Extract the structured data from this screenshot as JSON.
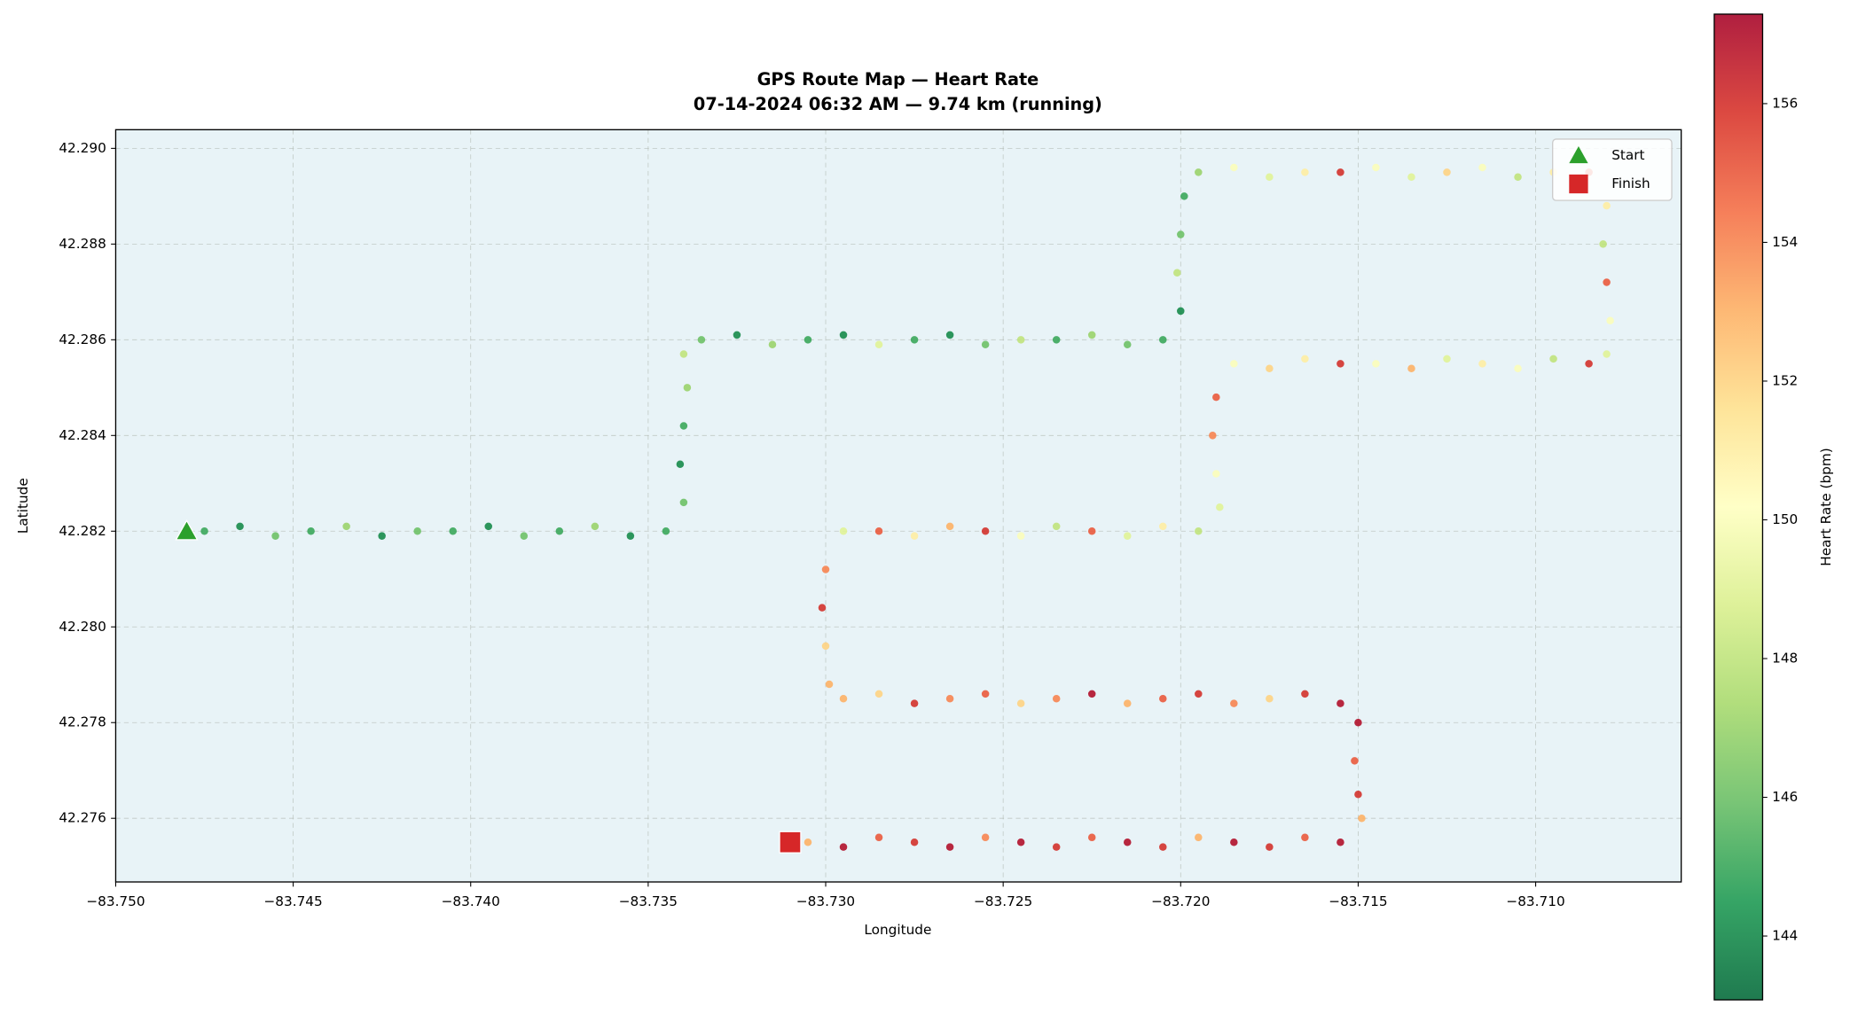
{
  "chart_data": {
    "type": "scatter",
    "title": "GPS Route Map — Heart Rate",
    "subtitle": "07-14-2024 06:32 AM — 9.74 km (running)",
    "x_label": "Longitude",
    "y_label": "Latitude",
    "colorbar_label": "Heart Rate (bpm)",
    "colormap": "RdYlGn_r",
    "xlim": [
      -83.75,
      -83.7059
    ],
    "ylim": [
      42.27467,
      42.29039
    ],
    "xticks": [
      {
        "value": -83.75,
        "label": "−83.750"
      },
      {
        "value": -83.745,
        "label": "−83.745"
      },
      {
        "value": -83.74,
        "label": "−83.740"
      },
      {
        "value": -83.735,
        "label": "−83.735"
      },
      {
        "value": -83.73,
        "label": "−83.730"
      },
      {
        "value": -83.725,
        "label": "−83.725"
      },
      {
        "value": -83.72,
        "label": "−83.720"
      },
      {
        "value": -83.715,
        "label": "−83.715"
      },
      {
        "value": -83.71,
        "label": "−83.710"
      }
    ],
    "yticks": [
      42.276,
      42.278,
      {
        "value": 42.28,
        "label": "42.280"
      },
      42.282,
      42.284,
      42.286,
      42.288,
      {
        "value": 42.29,
        "label": "42.290"
      }
    ],
    "clim": [
      143.08,
      157.29
    ],
    "cticks": [
      144,
      146,
      148,
      150,
      152,
      154,
      156
    ],
    "grid": true,
    "legend": "upper right",
    "markers": [
      {
        "name": "Start",
        "x": -83.748,
        "y": 42.282,
        "color": "#2ca02c",
        "shape": "triangle"
      },
      {
        "name": "Finish",
        "x": -83.731,
        "y": 42.2755,
        "color": "#d62728",
        "shape": "square"
      }
    ],
    "x": [
      -83.7475,
      -83.7465,
      -83.7455,
      -83.7445,
      -83.7435,
      -83.7425,
      -83.7415,
      -83.7405,
      -83.7395,
      -83.7385,
      -83.7375,
      -83.7365,
      -83.7355,
      -83.7345,
      -83.734,
      -83.7341,
      -83.734,
      -83.7339,
      -83.734,
      -83.7335,
      -83.7325,
      -83.7315,
      -83.7305,
      -83.7295,
      -83.7285,
      -83.7275,
      -83.7265,
      -83.7255,
      -83.7245,
      -83.7235,
      -83.7225,
      -83.7215,
      -83.7205,
      -83.72,
      -83.7201,
      -83.72,
      -83.7199,
      -83.7195,
      -83.7185,
      -83.7175,
      -83.7165,
      -83.7155,
      -83.7145,
      -83.7135,
      -83.7125,
      -83.7115,
      -83.7105,
      -83.7095,
      -83.7085,
      -83.708,
      -83.7081,
      -83.708,
      -83.7079,
      -83.708,
      -83.7085,
      -83.7095,
      -83.7105,
      -83.7115,
      -83.7125,
      -83.7135,
      -83.7145,
      -83.7155,
      -83.7165,
      -83.7175,
      -83.7185,
      -83.719,
      -83.7191,
      -83.719,
      -83.7189,
      -83.7195,
      -83.7205,
      -83.7215,
      -83.7225,
      -83.7235,
      -83.7245,
      -83.7255,
      -83.7265,
      -83.7275,
      -83.7285,
      -83.7295,
      -83.73,
      -83.7301,
      -83.73,
      -83.7299,
      -83.7295,
      -83.7285,
      -83.7275,
      -83.7265,
      -83.7255,
      -83.7245,
      -83.7235,
      -83.7225,
      -83.7215,
      -83.7205,
      -83.7195,
      -83.7185,
      -83.7175,
      -83.7165,
      -83.7155,
      -83.715,
      -83.7151,
      -83.715,
      -83.7149,
      -83.7155,
      -83.7165,
      -83.7175,
      -83.7185,
      -83.7195,
      -83.7205,
      -83.7215,
      -83.7225,
      -83.7235,
      -83.7245,
      -83.7255,
      -83.7265,
      -83.7275,
      -83.7285,
      -83.7295,
      -83.7305
    ],
    "y": [
      42.282,
      42.2821,
      42.2819,
      42.282,
      42.2821,
      42.2819,
      42.282,
      42.282,
      42.2821,
      42.2819,
      42.282,
      42.2821,
      42.2819,
      42.282,
      42.2826,
      42.2834,
      42.2842,
      42.285,
      42.2857,
      42.286,
      42.2861,
      42.2859,
      42.286,
      42.2861,
      42.2859,
      42.286,
      42.2861,
      42.2859,
      42.286,
      42.286,
      42.2861,
      42.2859,
      42.286,
      42.2866,
      42.2874,
      42.2882,
      42.289,
      42.2895,
      42.2896,
      42.2894,
      42.2895,
      42.2895,
      42.2896,
      42.2894,
      42.2895,
      42.2896,
      42.2894,
      42.2895,
      42.2895,
      42.2888,
      42.288,
      42.2872,
      42.2864,
      42.2857,
      42.2855,
      42.2856,
      42.2854,
      42.2855,
      42.2856,
      42.2854,
      42.2855,
      42.2855,
      42.2856,
      42.2854,
      42.2855,
      42.2848,
      42.284,
      42.2832,
      42.2825,
      42.282,
      42.2821,
      42.2819,
      42.282,
      42.2821,
      42.2819,
      42.282,
      42.2821,
      42.2819,
      42.282,
      42.282,
      42.2812,
      42.2804,
      42.2796,
      42.2788,
      42.2785,
      42.2786,
      42.2784,
      42.2785,
      42.2786,
      42.2784,
      42.2785,
      42.2786,
      42.2784,
      42.2785,
      42.2786,
      42.2784,
      42.2785,
      42.2786,
      42.2784,
      42.278,
      42.2772,
      42.2765,
      42.276,
      42.2755,
      42.2756,
      42.2754,
      42.2755,
      42.2756,
      42.2754,
      42.2755,
      42.2756,
      42.2754,
      42.2755,
      42.2756,
      42.2754,
      42.2755,
      42.2756,
      42.2754,
      42.2755
    ],
    "values": [
      145,
      144,
      146,
      145,
      147,
      144,
      146,
      145,
      144,
      146,
      145,
      147,
      144,
      145,
      146,
      144,
      145,
      147,
      148,
      146,
      144,
      147,
      145,
      144,
      149,
      145,
      144,
      146,
      148,
      145,
      147,
      146,
      145,
      144,
      148,
      146,
      145,
      147,
      150,
      149,
      151,
      156,
      150,
      149,
      152,
      150,
      148,
      151,
      155,
      151,
      148,
      155,
      150,
      149,
      156,
      148,
      150,
      151,
      149,
      153,
      150,
      156,
      151,
      152,
      150,
      155,
      154,
      150,
      149,
      148,
      151,
      149,
      155,
      148,
      150,
      156,
      153,
      151,
      155,
      149,
      154,
      156,
      152,
      153,
      153,
      152,
      156,
      154,
      155,
      152,
      154,
      157,
      153,
      155,
      156,
      154,
      152,
      156,
      157,
      157,
      155,
      156,
      153,
      157,
      155,
      156,
      157,
      153,
      156,
      157,
      155,
      156,
      157,
      154,
      157,
      156,
      155,
      157,
      153
    ]
  }
}
